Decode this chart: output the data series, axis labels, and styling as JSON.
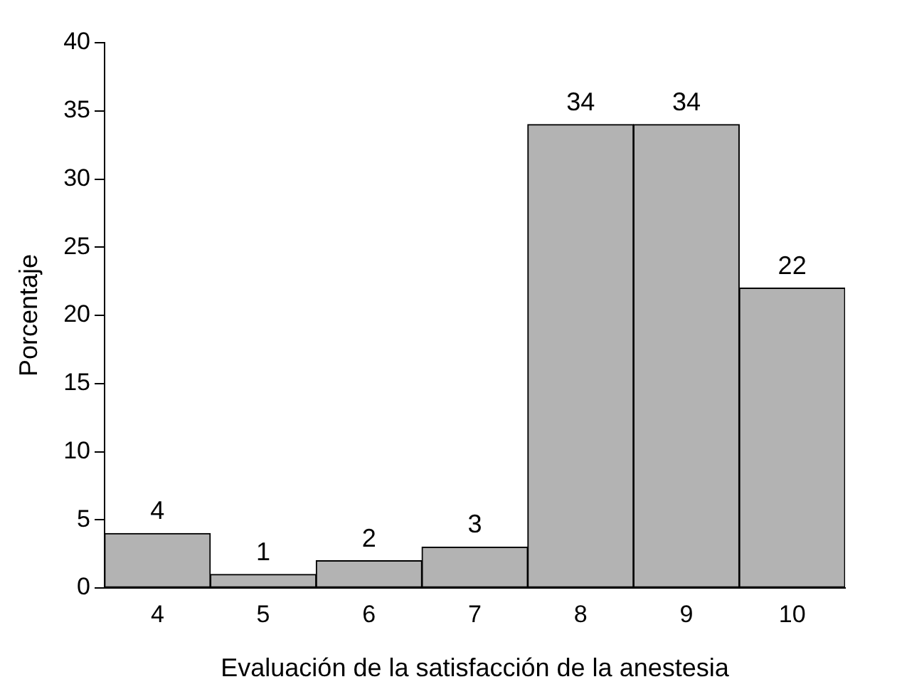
{
  "chart_data": {
    "type": "bar",
    "xlabel": "Evaluación de la satisfacción de la anestesia",
    "ylabel": "Porcentaje",
    "categories": [
      "4",
      "5",
      "6",
      "7",
      "8",
      "9",
      "10"
    ],
    "values": [
      4,
      1,
      2,
      3,
      34,
      34,
      22
    ],
    "color": "#b3b3b3",
    "ylim": [
      0,
      40
    ],
    "yticks": [
      0,
      5,
      10,
      15,
      20,
      25,
      30,
      35,
      40
    ],
    "grid": false,
    "legend": false,
    "data_labels": true
  }
}
